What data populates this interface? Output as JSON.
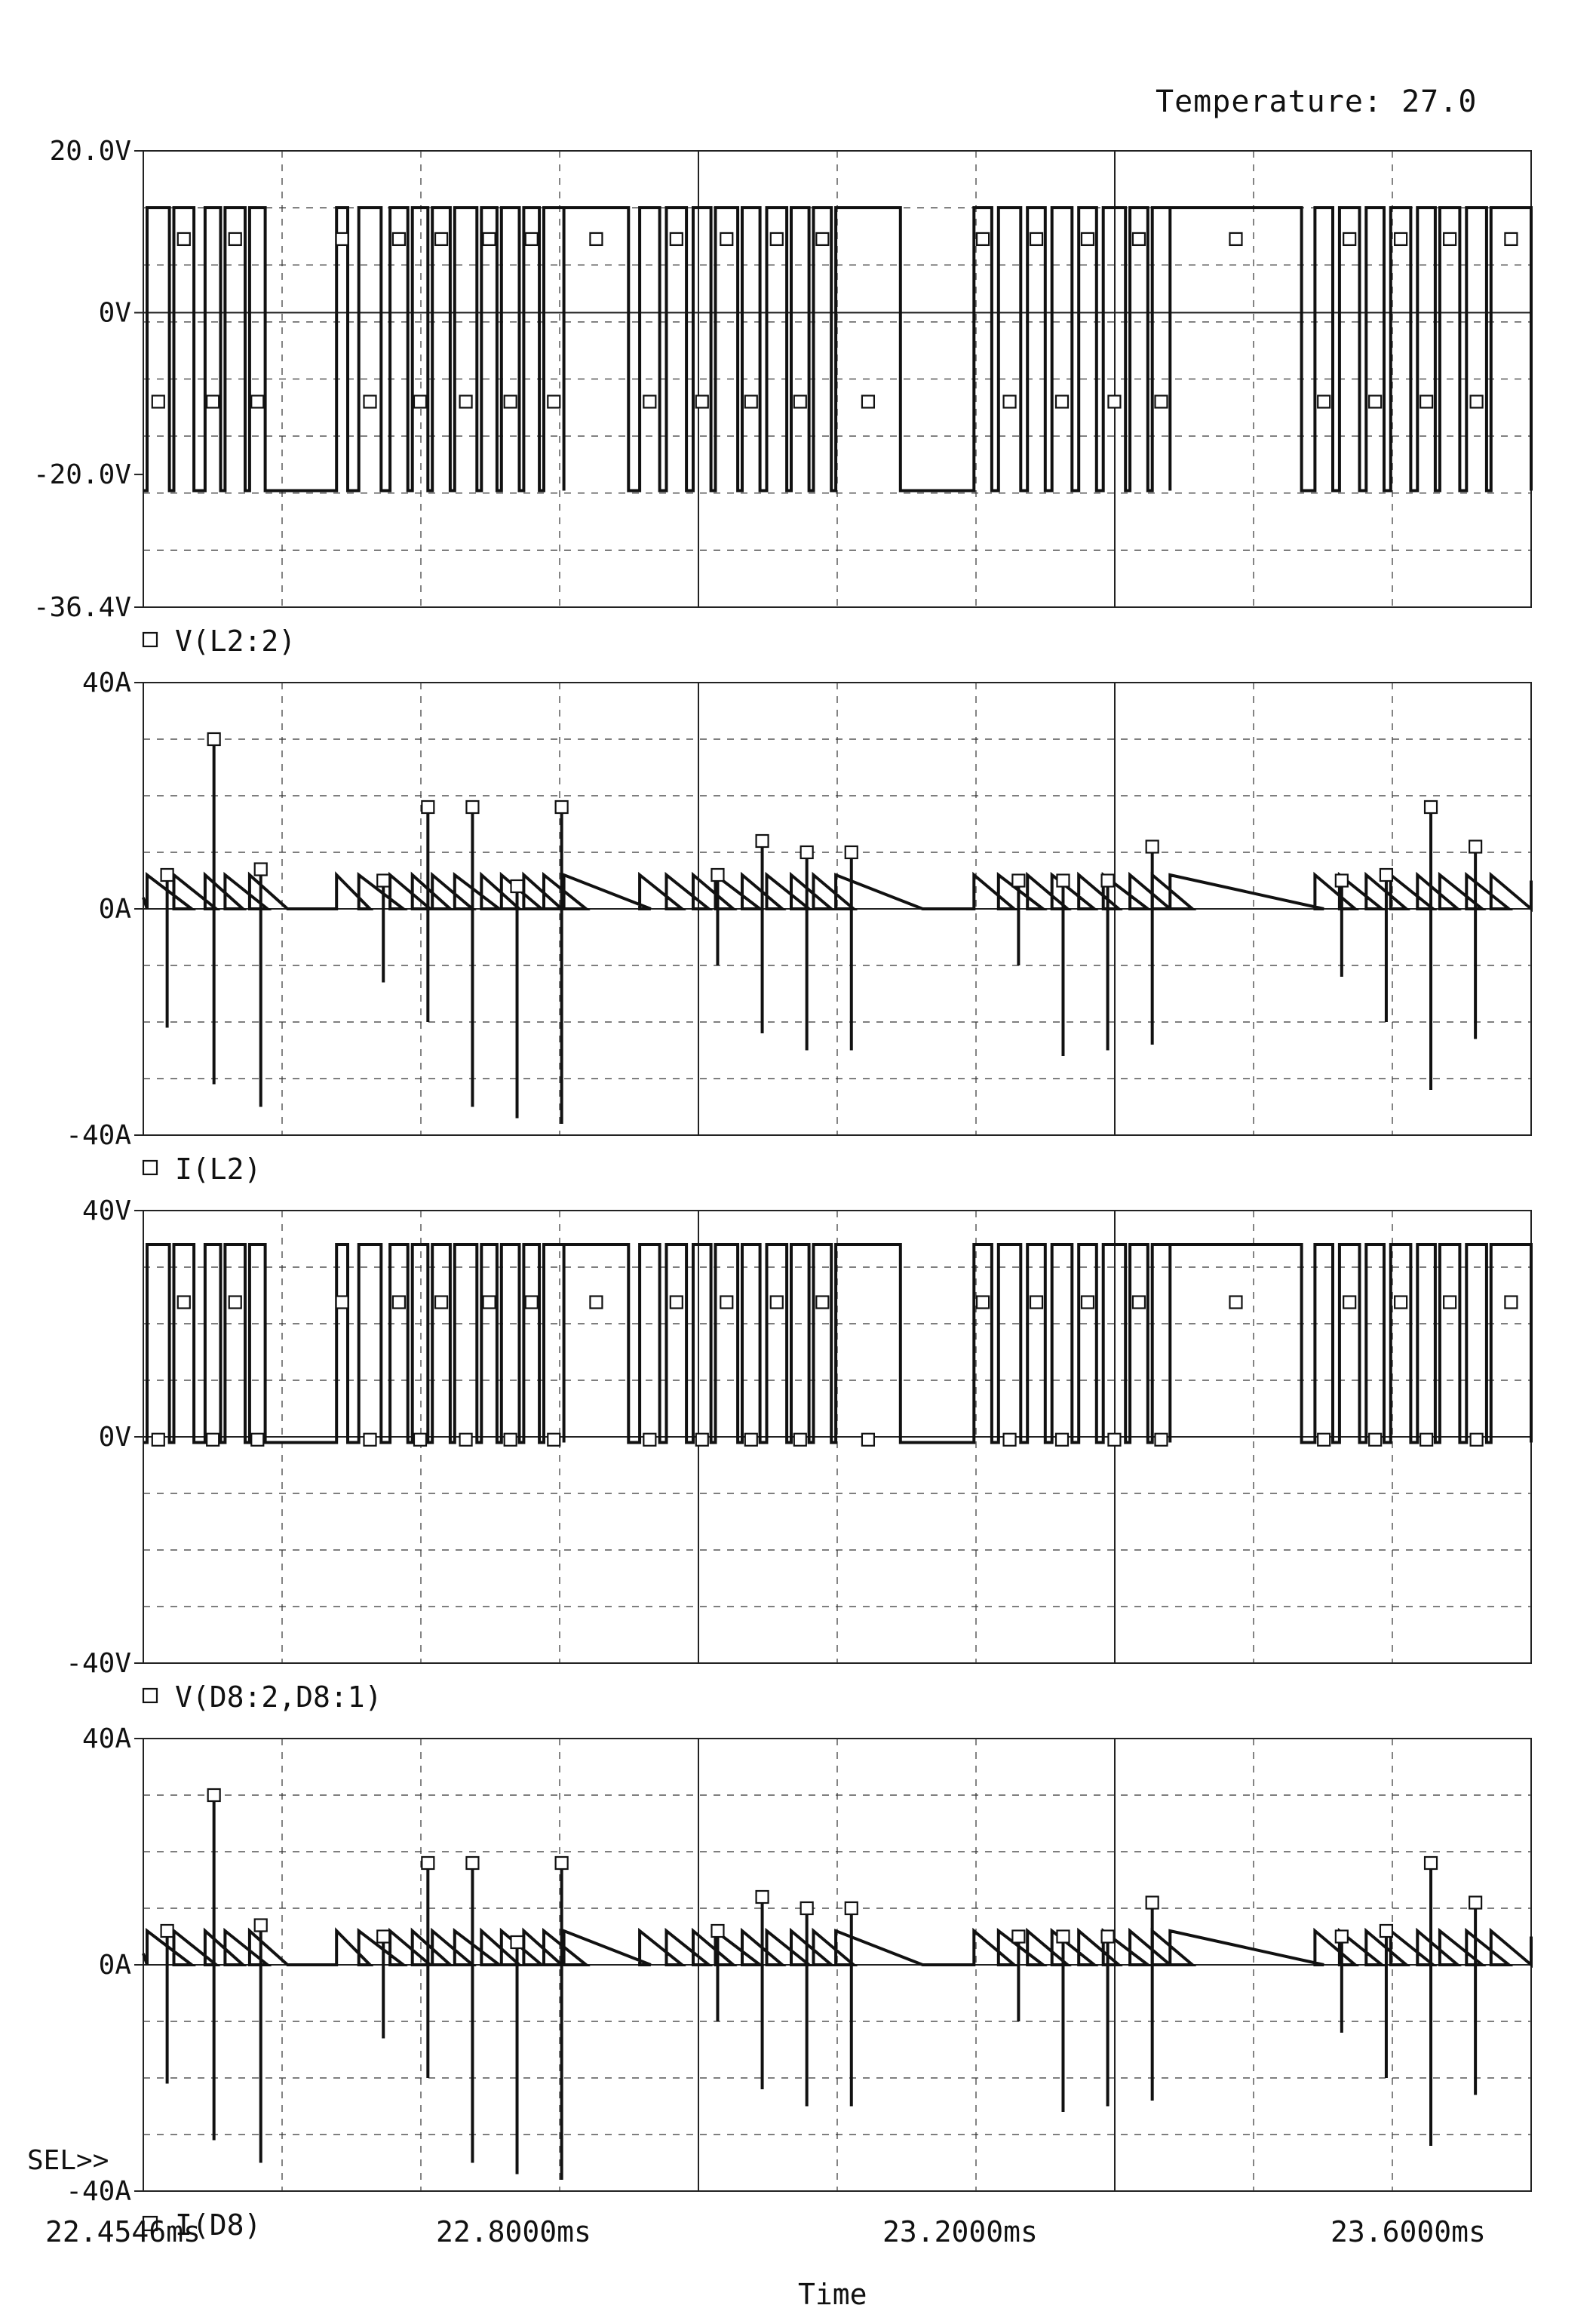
{
  "header": {
    "temperature": "Temperature: 27.0"
  },
  "footer": {
    "x_ticks": [
      "22.4546ms",
      "22.8000ms",
      "23.2000ms",
      "23.6000ms"
    ],
    "x_axis_label": "Time",
    "sel_label": "SEL>>"
  },
  "chart_data": [
    {
      "type": "line",
      "trace": "V(L2:2)",
      "legend_symbol": "□",
      "unit": "V",
      "xlim": [
        22.4546,
        23.7
      ],
      "ylim": [
        -36.4,
        20.0
      ],
      "y_ticks": [
        "20.0V",
        "0V",
        "-20.0V",
        "-36.4V"
      ],
      "y_tick_values": [
        20.0,
        0,
        -20.0,
        -36.4
      ],
      "waveform": "square wave switching between about +13 V and -22 V, three bursts of pulses per 0.4 ms",
      "high_level": 13.0,
      "low_level": -22.0,
      "transitions_ms": [
        22.458,
        22.478,
        22.482,
        22.5,
        22.51,
        22.524,
        22.528,
        22.546,
        22.55,
        22.564,
        22.628,
        22.638,
        22.648,
        22.668,
        22.676,
        22.692,
        22.696,
        22.71,
        22.714,
        22.73,
        22.734,
        22.754,
        22.758,
        22.772,
        22.776,
        22.792,
        22.796,
        22.81,
        22.814,
        22.832,
        22.832,
        22.89,
        22.9,
        22.918,
        22.924,
        22.942,
        22.948,
        22.964,
        22.968,
        22.988,
        22.992,
        23.008,
        23.014,
        23.032,
        23.036,
        23.052,
        23.056,
        23.072,
        23.076,
        23.134,
        23.2,
        23.216,
        23.222,
        23.242,
        23.248,
        23.264,
        23.27,
        23.288,
        23.294,
        23.31,
        23.316,
        23.336,
        23.34,
        23.356,
        23.36,
        23.376,
        23.376,
        23.494,
        23.506,
        23.522,
        23.528,
        23.546,
        23.552,
        23.568,
        23.574,
        23.592,
        23.598,
        23.614,
        23.618,
        23.636,
        23.642,
        23.66,
        23.664,
        23.7
      ]
    },
    {
      "type": "line",
      "trace": "I(L2)",
      "legend_symbol": "□",
      "unit": "A",
      "xlim": [
        22.4546,
        23.7
      ],
      "ylim": [
        -40,
        40
      ],
      "y_ticks": [
        "40A",
        "0A",
        "-40A"
      ],
      "y_tick_values": [
        40,
        0,
        -40
      ],
      "waveform": "sawtooth current peaking near +7 A, ramping down to 0 A, with narrow switching spikes",
      "spikes": [
        {
          "t": 22.476,
          "min": -21,
          "max": 6
        },
        {
          "t": 22.518,
          "min": -31,
          "max": 30
        },
        {
          "t": 22.56,
          "min": -35,
          "max": 7
        },
        {
          "t": 22.67,
          "min": -13,
          "max": 5
        },
        {
          "t": 22.71,
          "min": -20,
          "max": 18
        },
        {
          "t": 22.75,
          "min": -35,
          "max": 18
        },
        {
          "t": 22.79,
          "min": -37,
          "max": 4
        },
        {
          "t": 22.83,
          "min": -38,
          "max": 18
        },
        {
          "t": 22.97,
          "min": -10,
          "max": 6
        },
        {
          "t": 23.01,
          "min": -22,
          "max": 12
        },
        {
          "t": 23.05,
          "min": -25,
          "max": 10
        },
        {
          "t": 23.09,
          "min": -25,
          "max": 10
        },
        {
          "t": 23.24,
          "min": -10,
          "max": 5
        },
        {
          "t": 23.28,
          "min": -26,
          "max": 5
        },
        {
          "t": 23.32,
          "min": -25,
          "max": 5
        },
        {
          "t": 23.36,
          "min": -24,
          "max": 11
        },
        {
          "t": 23.53,
          "min": -12,
          "max": 5
        },
        {
          "t": 23.57,
          "min": -20,
          "max": 6
        },
        {
          "t": 23.61,
          "min": -32,
          "max": 18
        },
        {
          "t": 23.65,
          "min": -23,
          "max": 11
        }
      ]
    },
    {
      "type": "line",
      "trace": "V(D8:2,D8:1)",
      "legend_symbol": "□",
      "unit": "V",
      "xlim": [
        22.4546,
        23.7
      ],
      "ylim": [
        -40,
        40
      ],
      "y_ticks": [
        "40V",
        "0V",
        "-40V"
      ],
      "y_tick_values": [
        40,
        0,
        -40
      ],
      "waveform": "rectangular pulses between about -1 V and +34 V",
      "high_level": 34.0,
      "low_level": -1.0
    },
    {
      "type": "line",
      "trace": "I(D8)",
      "legend_symbol": "□",
      "unit": "A",
      "xlim": [
        22.4546,
        23.7
      ],
      "ylim": [
        -40,
        40
      ],
      "y_ticks": [
        "40A",
        "0A",
        "-40A"
      ],
      "y_tick_values": [
        40,
        0,
        -40
      ],
      "waveform": "sawtooth diode current similar to I(L2) with switching spikes"
    }
  ]
}
